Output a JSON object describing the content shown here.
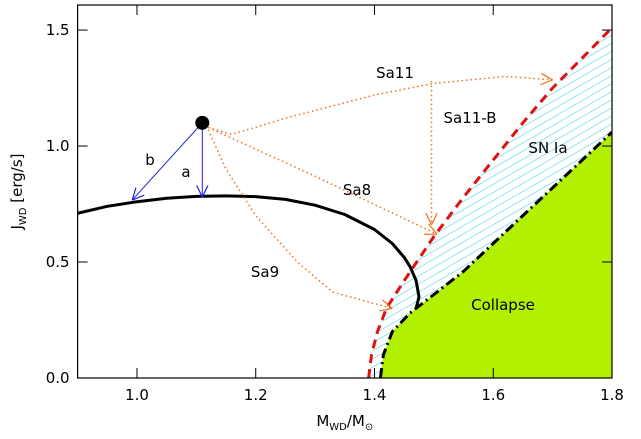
{
  "chart_data": {
    "type": "line",
    "x_label": [
      "M",
      "WD",
      "/M",
      "⊙"
    ],
    "y_label": [
      "J",
      "WD",
      " [erg/s]"
    ],
    "xlim": [
      0.9,
      1.8
    ],
    "ylim": [
      0,
      1.608
    ],
    "xticks": [
      {
        "value": 1,
        "label": "1.0"
      },
      1.2,
      1.4,
      1.6,
      1.8
    ],
    "yticks": [
      {
        "value": 0,
        "label": "0.0"
      },
      0.5,
      {
        "value": 1,
        "label": "1.0"
      },
      1.5
    ],
    "series": [
      {
        "style": "dashdot",
        "color": "#000000",
        "fill": "#b0f000",
        "x": [
          1.41,
          1.415,
          1.43,
          1.46,
          1.5,
          1.55,
          1.6,
          1.65,
          1.7,
          1.75,
          1.8
        ],
        "values": [
          0,
          0.1,
          0.2,
          0.28,
          0.36,
          0.46,
          0.58,
          0.7,
          0.82,
          0.94,
          1.06
        ]
      },
      {
        "style": "dashed",
        "color": "#e01010",
        "hatch_color": "#30c8f0",
        "x": [
          1.39,
          1.395,
          1.405,
          1.42,
          1.45,
          1.5,
          1.55,
          1.6,
          1.65,
          1.7,
          1.75,
          1.8
        ],
        "values": [
          0,
          0.1,
          0.2,
          0.3,
          0.42,
          0.61,
          0.78,
          0.94,
          1.1,
          1.25,
          1.38,
          1.51
        ]
      },
      {
        "style": "solid",
        "color": "#000000",
        "x": [
          0.9,
          0.95,
          1.0,
          1.05,
          1.1,
          1.15,
          1.2,
          1.25,
          1.3,
          1.35,
          1.4,
          1.43,
          1.45,
          1.46,
          1.47,
          1.475,
          1.47
        ],
        "values": [
          0.71,
          0.74,
          0.76,
          0.775,
          0.783,
          0.785,
          0.782,
          0.77,
          0.745,
          0.705,
          0.64,
          0.58,
          0.52,
          0.48,
          0.42,
          0.35,
          0.3
        ]
      },
      {
        "style": "arrow",
        "color": "#2020e0",
        "x": [
          1.11,
          1.11
        ],
        "values": [
          1.1,
          0.78
        ]
      },
      {
        "style": "arrow",
        "color": "#2020e0",
        "x": [
          1.11,
          0.992
        ],
        "values": [
          1.1,
          0.767
        ]
      },
      {
        "style": "dotted-arrow",
        "color": "#f07020",
        "x": [
          1.12,
          1.16,
          1.25,
          1.4,
          1.5,
          1.62,
          1.7
        ],
        "values": [
          1.08,
          1.05,
          1.12,
          1.22,
          1.27,
          1.3,
          1.285
        ]
      },
      {
        "style": "dotted-arrow",
        "color": "#f07020",
        "x": [
          1.496,
          1.496
        ],
        "values": [
          1.28,
          0.66
        ]
      },
      {
        "style": "dotted-arrow",
        "color": "#f07020",
        "x": [
          1.12,
          1.3,
          1.505
        ],
        "values": [
          1.08,
          0.87,
          0.62
        ]
      },
      {
        "style": "dotted-arrow",
        "color": "#f07020",
        "x": [
          1.12,
          1.15,
          1.2,
          1.27,
          1.33,
          1.43
        ],
        "values": [
          1.07,
          0.9,
          0.7,
          0.5,
          0.37,
          0.3
        ]
      },
      {
        "style": "marker",
        "color": "#000000",
        "x": [
          1.11
        ],
        "values": [
          1.1
        ]
      }
    ],
    "annotations": [
      {
        "text": "Sa11",
        "color": "#000000"
      },
      {
        "text": "Sa11-B",
        "color": "#000000"
      },
      {
        "text": "SN Ia",
        "color": "#000000"
      },
      {
        "text": "Sa8",
        "color": "#000000"
      },
      {
        "text": "Sa9",
        "color": "#000000"
      },
      {
        "text": "Collapse",
        "color": "#000000"
      },
      {
        "text": "a",
        "color": "#2020e0"
      },
      {
        "text": "b",
        "color": "#2020e0"
      }
    ]
  }
}
